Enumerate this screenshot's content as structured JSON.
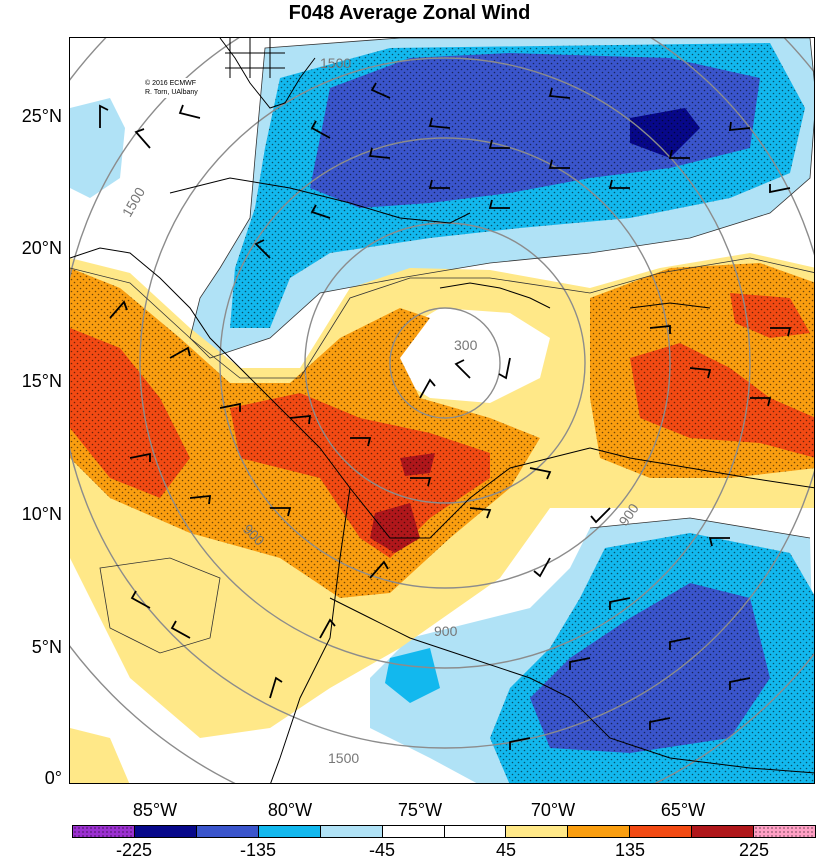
{
  "title": "F048 Average Zonal Wind",
  "credit": [
    "© 2016 ECMWF",
    "R. Torn, UAlbany"
  ],
  "lat_labels": [
    "25°N",
    "20°N",
    "15°N",
    "10°N",
    "5°N",
    "0°"
  ],
  "lon_labels": [
    "85°W",
    "80°W",
    "75°W",
    "70°W",
    "65°W"
  ],
  "range_ring_labels": [
    "300",
    "900",
    "1500"
  ],
  "colorbar": {
    "tick_labels": [
      "-225",
      "-135",
      "-45",
      "45",
      "135",
      "225"
    ],
    "colors": [
      "#9b30d0",
      "#07088a",
      "#3a55cc",
      "#12b8ee",
      "#b0e2f6",
      "#ffffff",
      "#ffffff",
      "#ffe888",
      "#fa9e10",
      "#f24a13",
      "#b0171b",
      "#ff9fc4"
    ]
  }
}
